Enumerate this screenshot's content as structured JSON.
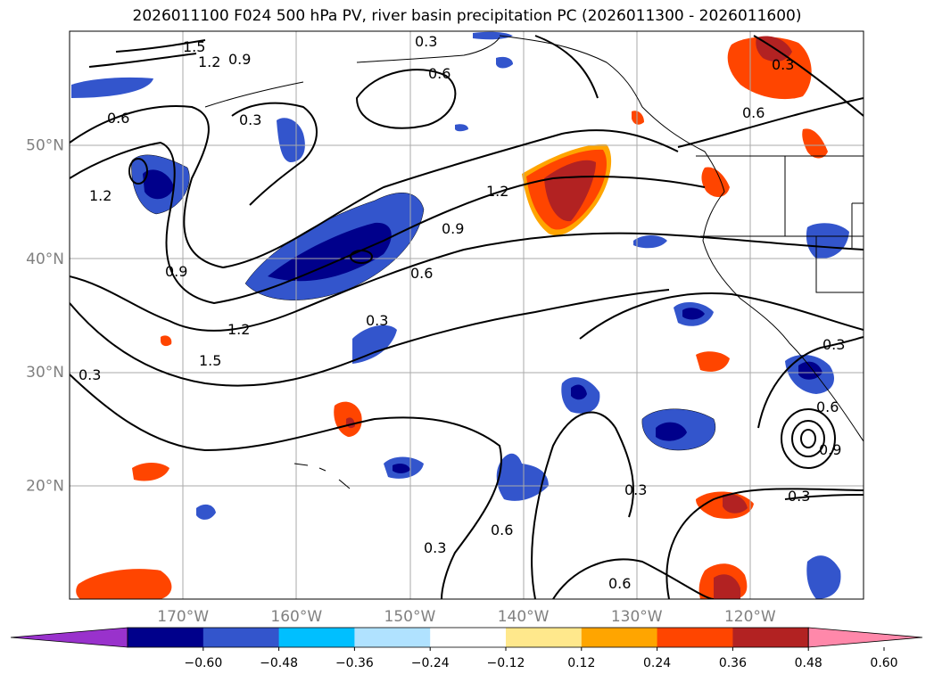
{
  "title": "2026011100 F024 500 hPa PV, river basin precipitation PC (2026011300 - 2026011600)",
  "map": {
    "lon_range": [
      -180,
      -110
    ],
    "lat_range": [
      10,
      60
    ],
    "lat_ticks": [
      {
        "value": 50,
        "label": "50°N"
      },
      {
        "value": 40,
        "label": "40°N"
      },
      {
        "value": 30,
        "label": "30°N"
      },
      {
        "value": 20,
        "label": "20°N"
      }
    ],
    "lon_ticks": [
      {
        "value": -170,
        "label": "170°W"
      },
      {
        "value": -160,
        "label": "160°W"
      },
      {
        "value": -150,
        "label": "150°W"
      },
      {
        "value": -140,
        "label": "140°W"
      },
      {
        "value": -130,
        "label": "130°W"
      },
      {
        "value": -120,
        "label": "120°W"
      }
    ],
    "grid": true,
    "contour_labels": [
      "1.5",
      "1.2",
      "0.9",
      "0.3",
      "0.6",
      "0.6",
      "1.2",
      "1.2",
      "0.9",
      "0.6",
      "0.9",
      "1.2",
      "1.5",
      "0.3",
      "0.3",
      "0.3",
      "0.3",
      "0.6",
      "0.3",
      "0.6",
      "0.9",
      "0.3",
      "0.6",
      "0.3",
      "0.6"
    ]
  },
  "colorbar": {
    "colors": [
      "#9932cc",
      "#00008b",
      "#3355cc",
      "#00bfff",
      "#b0e2ff",
      "#ffffff",
      "#ffe88c",
      "#ffa500",
      "#ff4500",
      "#b22222",
      "#ff88aa"
    ],
    "ticks": [
      "−0.60",
      "−0.48",
      "−0.36",
      "−0.24",
      "−0.12",
      "0.12",
      "0.24",
      "0.36",
      "0.48",
      "0.60"
    ],
    "extend": "both"
  }
}
